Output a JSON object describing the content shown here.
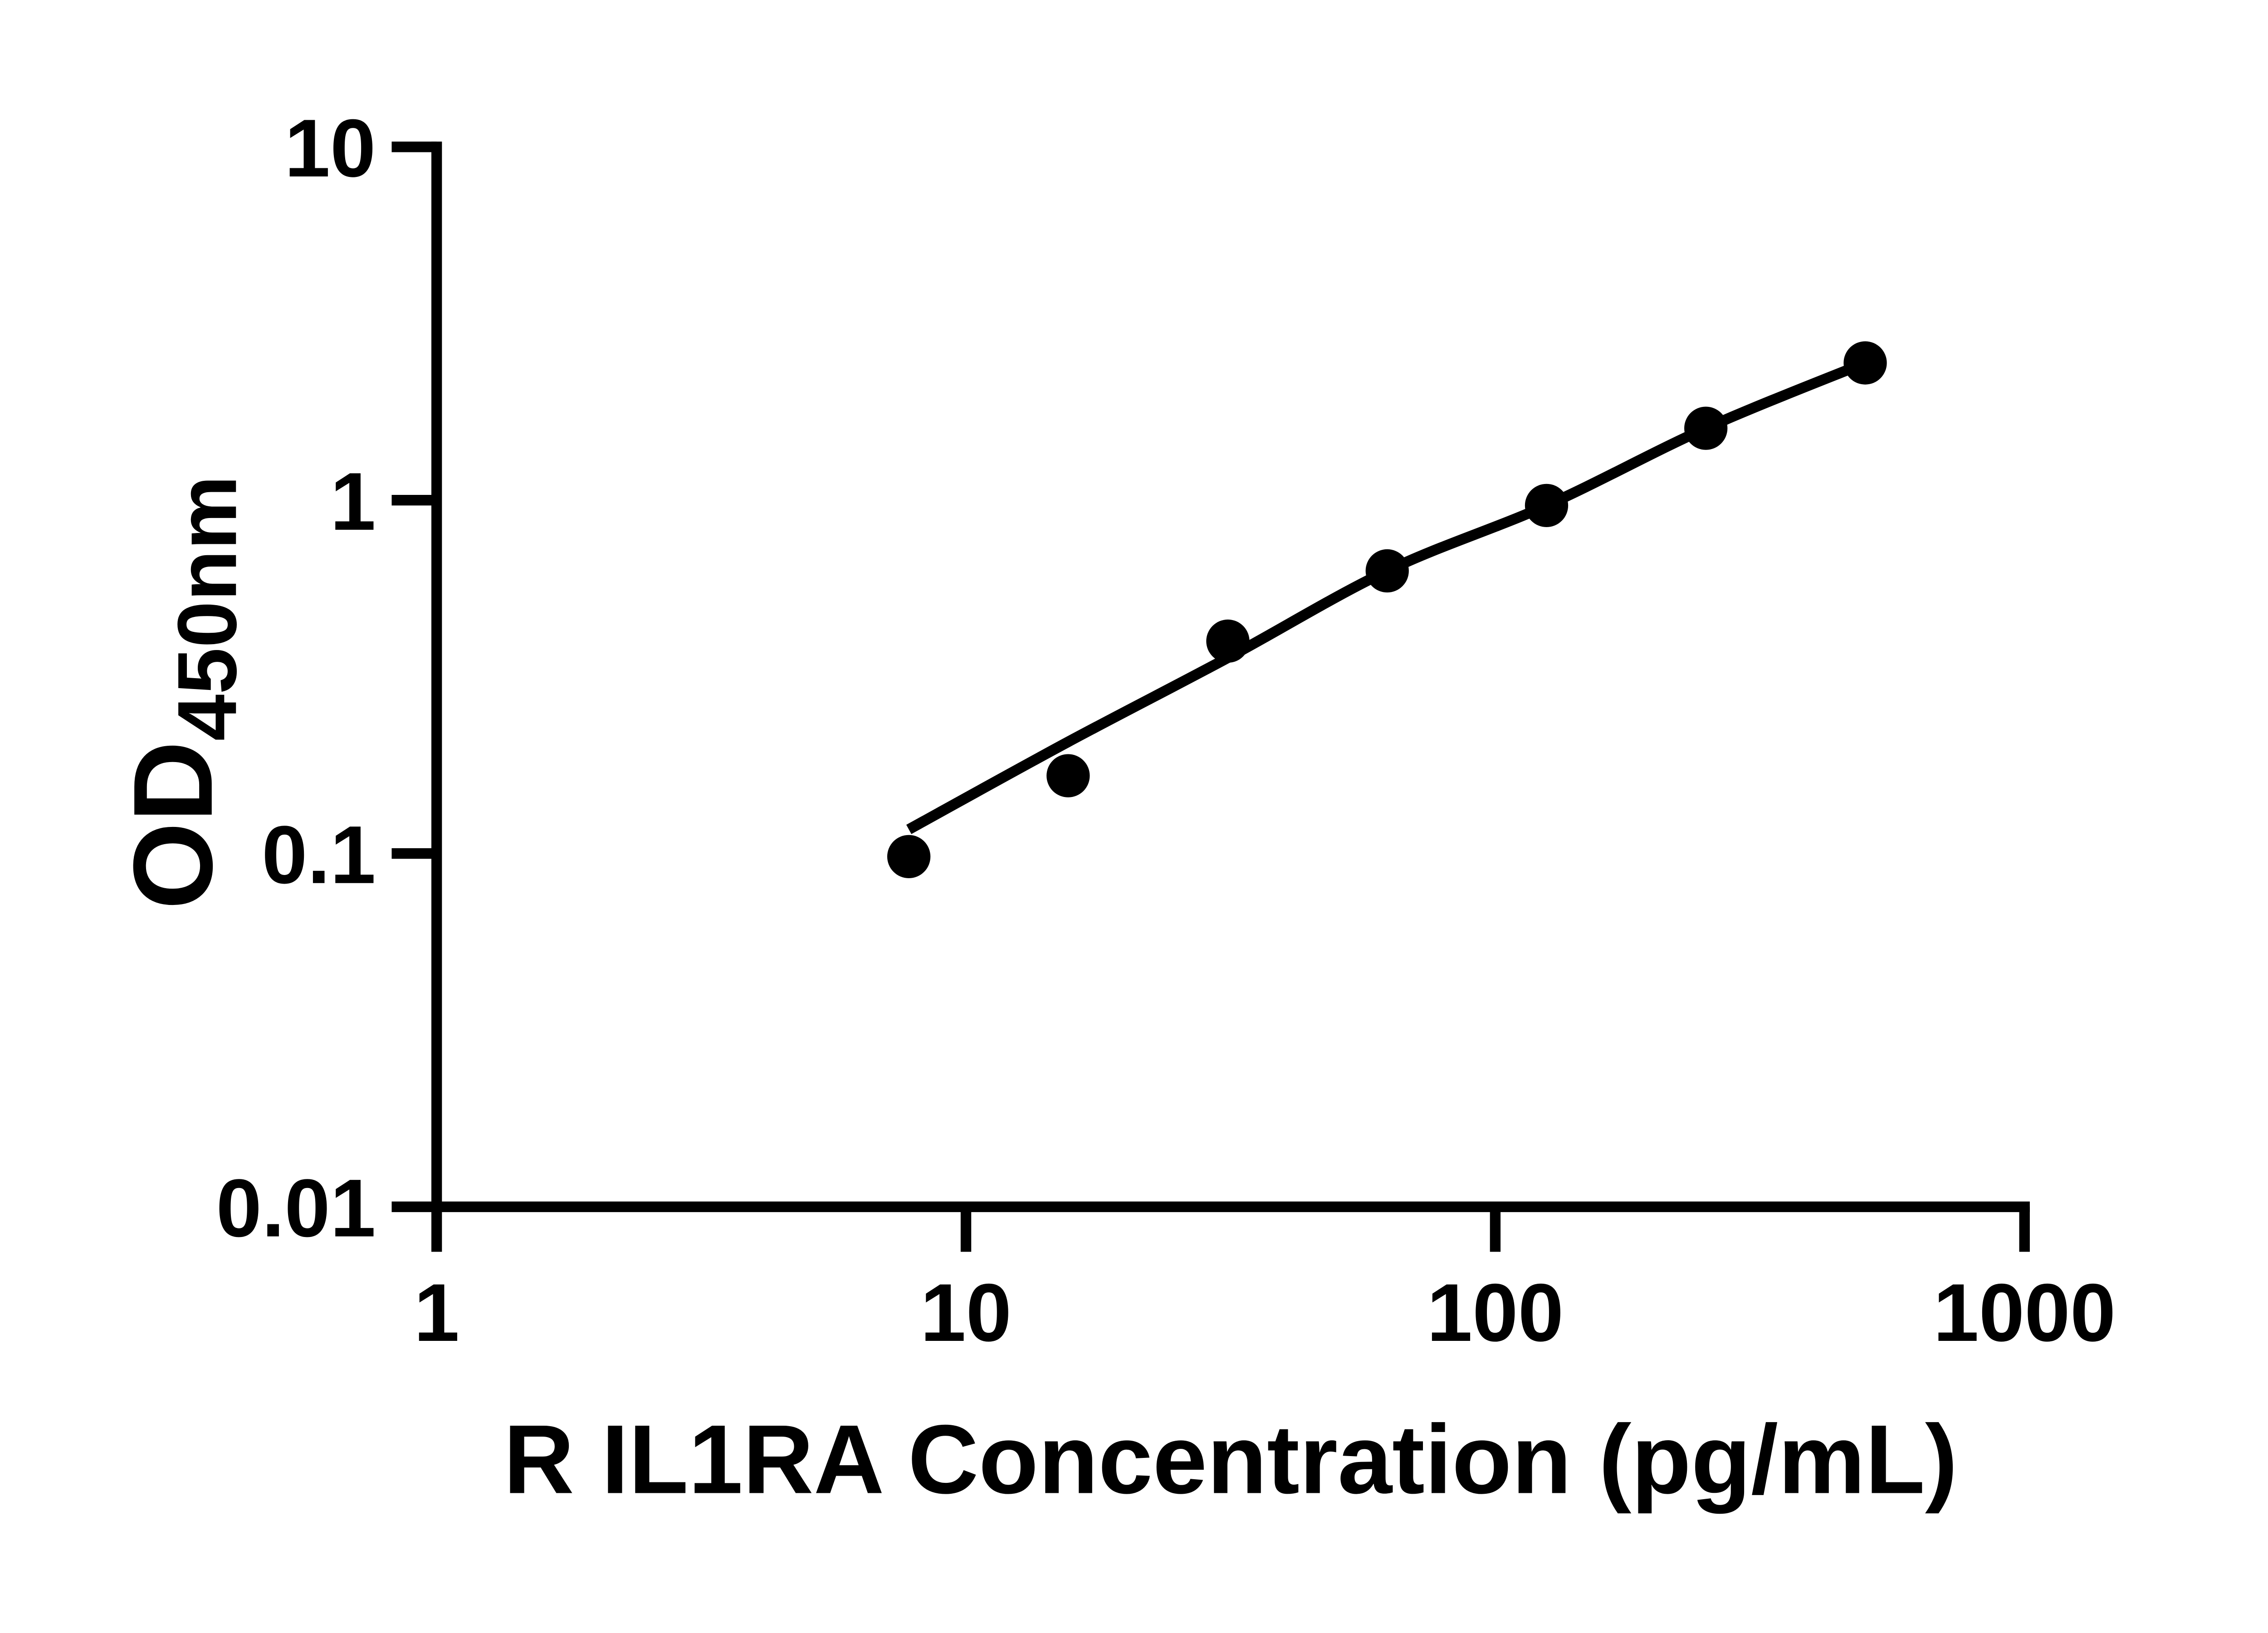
{
  "figure": {
    "background_color": "#ffffff",
    "foreground_color": "#000000"
  },
  "chart_data": {
    "type": "scatter",
    "title": "",
    "xlabel": "R IL1RA Concentration (pg/mL)",
    "ylabel_main": "OD",
    "ylabel_sub": "450nm",
    "x_scale": "log10",
    "y_scale": "log10",
    "xlim": [
      1,
      1000
    ],
    "ylim": [
      0.01,
      10
    ],
    "x_tick_values": [
      1,
      10,
      100,
      1000
    ],
    "x_tick_labels": [
      "1",
      "10",
      "100",
      "1000"
    ],
    "y_tick_values": [
      10,
      1,
      0.1,
      0.01
    ],
    "y_tick_labels": [
      "10",
      "1",
      "0.1",
      "0.01"
    ],
    "grid": false,
    "legend": false,
    "marker": "filled-circle",
    "marker_color": "#000000",
    "line_color": "#000000",
    "points": [
      {
        "x": 7.8,
        "od": 0.098
      },
      {
        "x": 15.6,
        "od": 0.166
      },
      {
        "x": 31.25,
        "od": 0.399
      },
      {
        "x": 62.5,
        "od": 0.631
      },
      {
        "x": 125,
        "od": 0.966
      },
      {
        "x": 250,
        "od": 1.598
      },
      {
        "x": 500,
        "od": 2.446
      }
    ],
    "fit_curve": [
      {
        "x": 7.8,
        "od": 0.117
      },
      {
        "x": 15.6,
        "od": 0.207
      },
      {
        "x": 31.25,
        "od": 0.358
      },
      {
        "x": 62.5,
        "od": 0.631
      },
      {
        "x": 125,
        "od": 0.966
      },
      {
        "x": 250,
        "od": 1.598
      },
      {
        "x": 500,
        "od": 2.446
      }
    ]
  }
}
